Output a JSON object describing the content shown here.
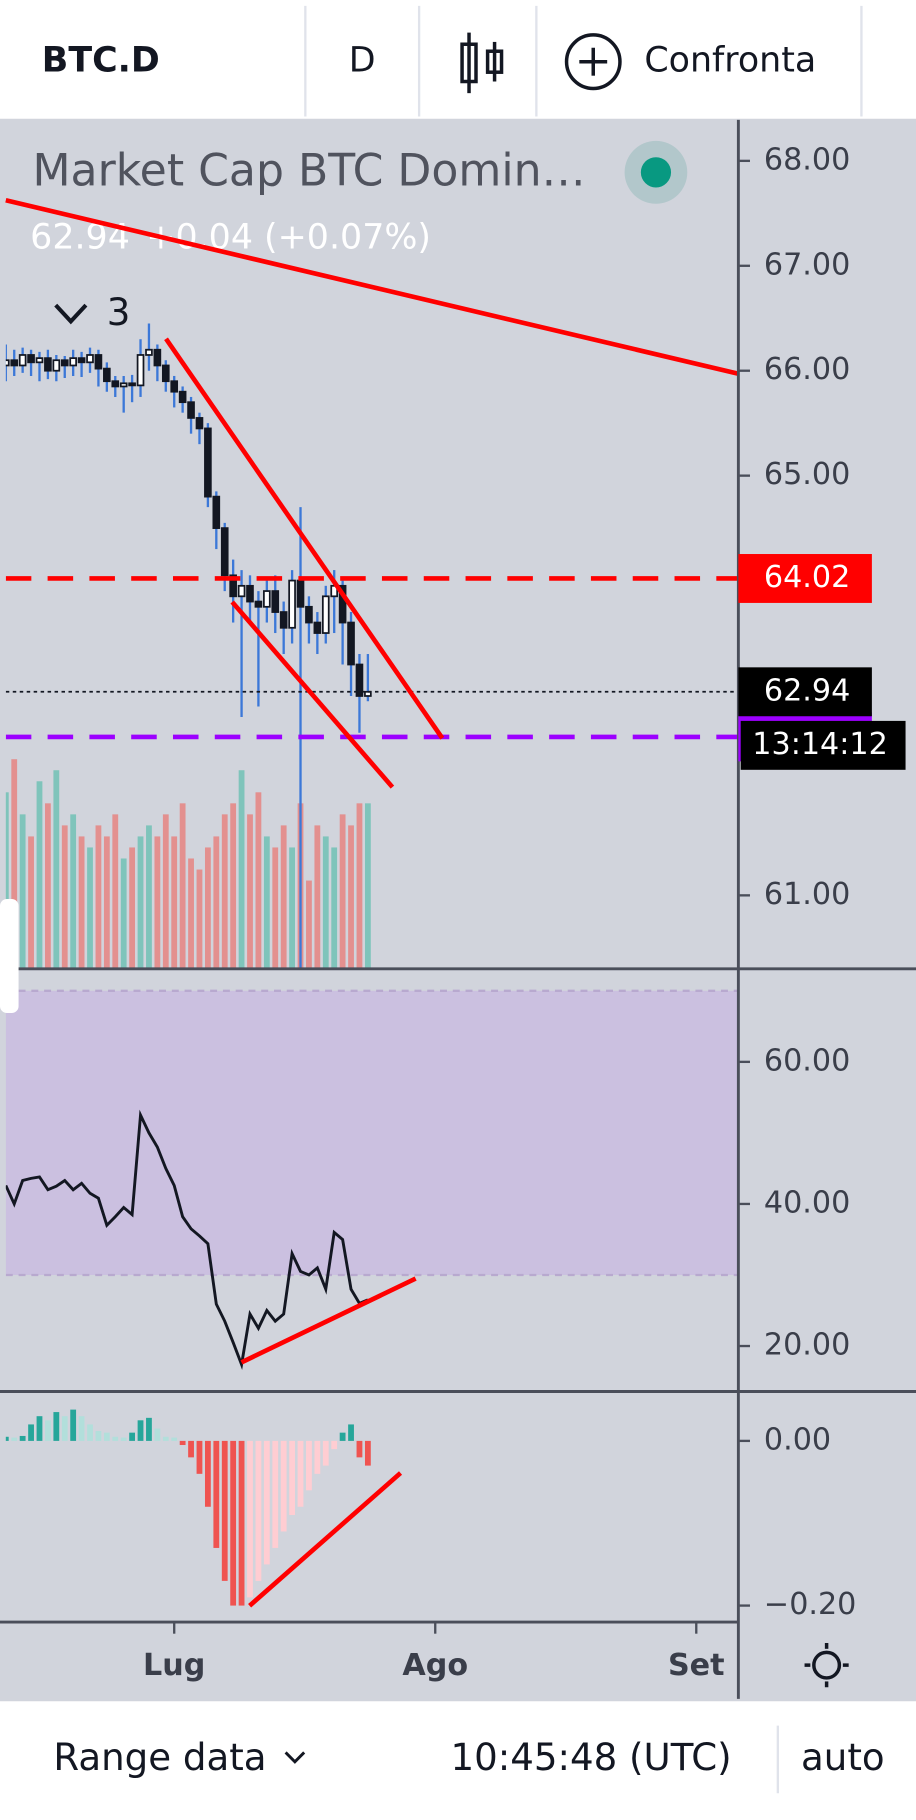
{
  "toolbar": {
    "symbol": "BTC.D",
    "interval": "D",
    "compare": "Confronta"
  },
  "chart_data": {
    "type": "candlestick",
    "title": "Market Cap BTC Domin…",
    "last": "62.94",
    "change": "+0.04 (+0.07%)",
    "indicators": 3,
    "xlim": [
      0,
      87
    ],
    "xticks": [
      {
        "value": 20,
        "label": "Lug"
      },
      {
        "value": 51,
        "label": "Ago"
      },
      {
        "value": 82,
        "label": "Set"
      }
    ],
    "ylim": [
      60.3,
      68.39
    ],
    "yticks": [
      {
        "value": 61,
        "label": "61.00"
      },
      {
        "value": 65,
        "label": "65.00"
      },
      {
        "value": 66,
        "label": "66.00"
      },
      {
        "value": 67,
        "label": "67.00"
      },
      {
        "value": 68,
        "label": "68.00"
      }
    ],
    "open": [
      66.05,
      66.1,
      66.05,
      66.15,
      66.08,
      66.12,
      66.0,
      66.1,
      66.05,
      66.12,
      66.08,
      66.15,
      66.02,
      65.9,
      65.85,
      65.88,
      65.86,
      66.15,
      66.2,
      66.05,
      65.9,
      65.8,
      65.7,
      65.55,
      65.45,
      64.8,
      64.5,
      64.05,
      63.85,
      63.95,
      63.8,
      63.75,
      63.9,
      63.7,
      63.55,
      64.0,
      63.75,
      63.6,
      63.5,
      63.85,
      63.95,
      63.6,
      63.2,
      62.9
    ],
    "high": [
      66.25,
      66.2,
      66.22,
      66.2,
      66.18,
      66.2,
      66.15,
      66.14,
      66.2,
      66.18,
      66.22,
      66.2,
      66.08,
      65.95,
      65.95,
      65.96,
      66.3,
      66.45,
      66.25,
      66.1,
      65.95,
      65.85,
      65.75,
      65.6,
      65.5,
      64.85,
      64.55,
      64.2,
      64.1,
      64.05,
      63.9,
      64.0,
      64.05,
      63.8,
      64.1,
      64.7,
      63.85,
      63.7,
      63.95,
      64.1,
      64.0,
      63.7,
      63.3,
      63.3
    ],
    "low": [
      65.9,
      65.95,
      65.98,
      65.95,
      65.9,
      65.92,
      65.9,
      65.93,
      65.95,
      65.94,
      65.98,
      65.85,
      65.8,
      65.75,
      65.6,
      65.7,
      65.75,
      66.0,
      65.9,
      65.8,
      65.65,
      65.6,
      65.4,
      65.3,
      64.7,
      64.3,
      63.9,
      63.6,
      62.7,
      63.6,
      62.8,
      63.6,
      63.5,
      63.3,
      63.4,
      60.2,
      63.4,
      63.3,
      63.4,
      63.5,
      63.2,
      62.9,
      62.55,
      62.85
    ],
    "close": [
      66.1,
      66.05,
      66.15,
      66.08,
      66.12,
      66.0,
      66.1,
      66.05,
      66.12,
      66.08,
      66.15,
      66.02,
      65.9,
      65.85,
      65.88,
      65.86,
      66.15,
      66.2,
      66.05,
      65.9,
      65.8,
      65.7,
      65.55,
      65.45,
      64.8,
      64.5,
      64.05,
      63.85,
      63.95,
      63.8,
      63.75,
      63.9,
      63.7,
      63.55,
      64.0,
      63.75,
      63.6,
      63.5,
      63.85,
      63.95,
      63.6,
      63.2,
      62.9,
      62.94
    ],
    "volume": [
      80,
      95,
      70,
      60,
      85,
      75,
      90,
      65,
      70,
      60,
      55,
      65,
      60,
      70,
      50,
      55,
      60,
      65,
      60,
      70,
      60,
      75,
      50,
      45,
      55,
      60,
      70,
      75,
      90,
      70,
      80,
      60,
      55,
      65,
      55,
      75,
      40,
      65,
      60,
      55,
      70,
      65,
      75,
      75
    ],
    "levels": [
      {
        "value": 64.02,
        "color": "#ff0000"
      },
      {
        "value": 62.51,
        "color": "#9c00ff"
      }
    ],
    "last_price": 62.94,
    "countdown": "13:14:12",
    "rsi": {
      "ylim": [
        13.6,
        73.1
      ],
      "yticks": [
        {
          "value": 20,
          "label": "20.00"
        },
        {
          "value": 40,
          "label": "40.00"
        },
        {
          "value": 60,
          "label": "60.00"
        }
      ],
      "band": [
        30,
        70
      ],
      "values": [
        42.6,
        40.0,
        43.3,
        43.6,
        43.8,
        42.0,
        42.5,
        43.3,
        42.0,
        42.9,
        41.5,
        40.8,
        37.0,
        38.2,
        39.5,
        38.5,
        52.5,
        50.0,
        48.0,
        45.0,
        42.6,
        38.2,
        36.5,
        35.5,
        34.4,
        25.9,
        23.5,
        20.5,
        17.4,
        24.5,
        22.5,
        25.0,
        23.5,
        24.5,
        33.0,
        30.5,
        30.0,
        31.0,
        28.0,
        36.0,
        35.0,
        28.0,
        26.0,
        26.5
      ]
    },
    "macd": {
      "ylim": [
        -0.22,
        0.06
      ],
      "yticks": [
        {
          "value": -0.2,
          "label": "−0.20"
        },
        {
          "value": 0,
          "label": "0.00"
        }
      ],
      "values": [
        0.005,
        0.004,
        0.006,
        0.02,
        0.03,
        0.025,
        0.035,
        0.03,
        0.038,
        0.03,
        0.02,
        0.012,
        0.01,
        0.005,
        0.004,
        0.01,
        0.025,
        0.028,
        0.015,
        0.005,
        0.004,
        -0.005,
        -0.02,
        -0.04,
        -0.08,
        -0.13,
        -0.17,
        -0.2,
        -0.2,
        -0.19,
        -0.17,
        -0.15,
        -0.13,
        -0.11,
        -0.09,
        -0.08,
        -0.06,
        -0.04,
        -0.03,
        -0.01,
        0.01,
        0.02,
        -0.02,
        -0.03
      ]
    }
  },
  "footer": {
    "range": "Range data",
    "time": "10:45:48 (UTC)",
    "mode": "auto"
  }
}
